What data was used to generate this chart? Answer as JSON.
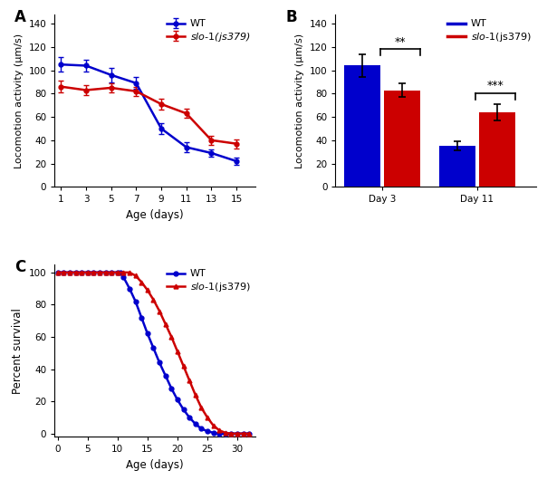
{
  "panel_A": {
    "wt_x": [
      1,
      3,
      5,
      7,
      9,
      11,
      13,
      15
    ],
    "wt_y": [
      105,
      104,
      96,
      89,
      50,
      34,
      29,
      22
    ],
    "wt_err": [
      6,
      5,
      6,
      5,
      5,
      4,
      3,
      3
    ],
    "slo_x": [
      1,
      3,
      5,
      7,
      9,
      11,
      13,
      15
    ],
    "slo_y": [
      86,
      83,
      85,
      82,
      71,
      63,
      40,
      37
    ],
    "slo_err": [
      5,
      4,
      4,
      4,
      5,
      4,
      4,
      4
    ],
    "xlabel": "Age (days)",
    "ylabel": "Locomotion activity (μm/s)",
    "ylim": [
      0,
      148
    ],
    "xlim": [
      0.5,
      16.5
    ],
    "yticks": [
      0,
      20,
      40,
      60,
      80,
      100,
      120,
      140
    ],
    "xticks": [
      1,
      3,
      5,
      7,
      9,
      11,
      13,
      15
    ],
    "label": "A"
  },
  "panel_B": {
    "day3_wt": 104,
    "day3_wt_err": 10,
    "day3_slo": 83,
    "day3_slo_err": 6,
    "day11_wt": 35,
    "day11_wt_err": 4,
    "day11_slo": 64,
    "day11_slo_err": 7,
    "ylabel": "Locomotion activity (μm/s)",
    "ylim": [
      0,
      148
    ],
    "yticks": [
      0,
      20,
      40,
      60,
      80,
      100,
      120,
      140
    ],
    "label": "B",
    "sig1": "**",
    "sig2": "***"
  },
  "panel_C": {
    "xlabel": "Age (days)",
    "ylabel": "Percent survival",
    "ylim": [
      -2,
      105
    ],
    "xlim": [
      -0.5,
      33
    ],
    "yticks": [
      0,
      20,
      40,
      60,
      80,
      100
    ],
    "xticks": [
      0,
      5,
      10,
      15,
      20,
      25,
      30
    ],
    "label": "C",
    "wt_x": [
      0,
      1,
      2,
      3,
      4,
      5,
      6,
      7,
      8,
      9,
      10,
      10.5,
      11,
      12,
      13,
      14,
      15,
      16,
      17,
      18,
      19,
      20,
      21,
      22,
      23,
      24,
      25,
      26,
      27,
      28,
      29,
      30,
      31,
      32
    ],
    "wt_y": [
      100,
      100,
      100,
      100,
      100,
      100,
      100,
      100,
      100,
      100,
      100,
      100,
      97,
      90,
      82,
      72,
      62,
      53,
      44,
      36,
      28,
      21,
      15,
      10,
      6,
      3,
      1.5,
      0.5,
      0,
      0,
      0,
      0,
      0,
      0
    ],
    "slo_x": [
      0,
      1,
      2,
      3,
      4,
      5,
      6,
      7,
      8,
      9,
      10,
      11,
      12,
      13,
      14,
      15,
      16,
      17,
      18,
      19,
      20,
      21,
      22,
      23,
      24,
      25,
      26,
      27,
      28,
      29,
      30,
      31,
      32
    ],
    "slo_y": [
      100,
      100,
      100,
      100,
      100,
      100,
      100,
      100,
      100,
      100,
      100,
      100,
      100,
      98,
      94,
      89,
      83,
      76,
      68,
      60,
      51,
      42,
      33,
      24,
      16,
      10,
      5,
      2,
      0.5,
      0,
      0,
      0,
      0
    ]
  },
  "wt_color": "#0000cc",
  "slo_color": "#cc0000",
  "wt_label": "WT",
  "slo_label": "slo-1(js379)"
}
